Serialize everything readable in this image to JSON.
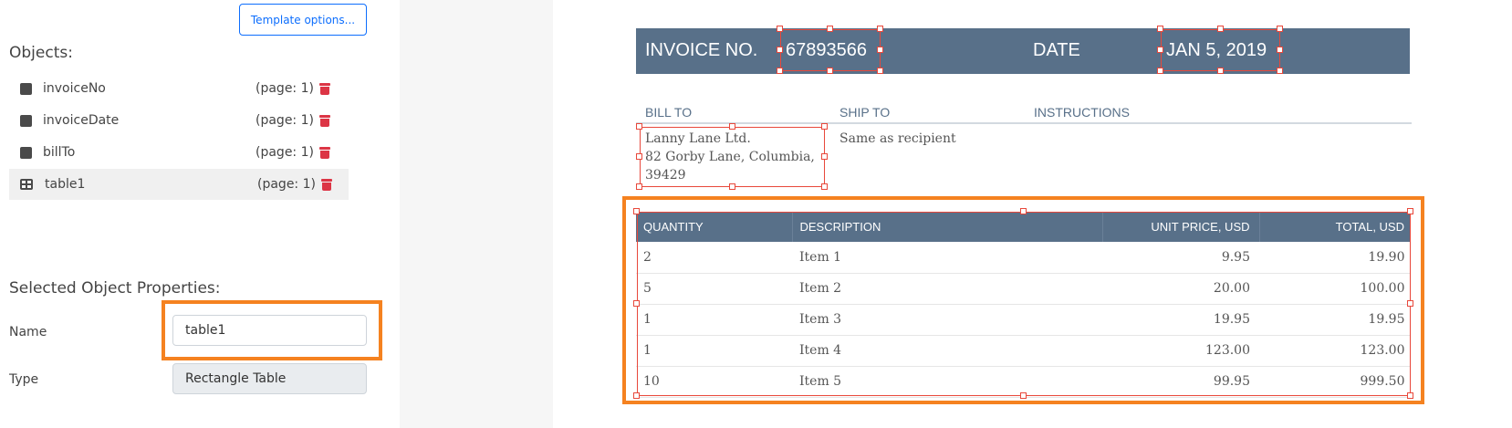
{
  "left_panel": {
    "template_options_label": "Template options...",
    "objects_heading": "Objects:",
    "objects": [
      {
        "name": "invoiceNo",
        "page": "(page: 1)",
        "icon": "square-icon"
      },
      {
        "name": "invoiceDate",
        "page": "(page: 1)",
        "icon": "square-icon"
      },
      {
        "name": "billTo",
        "page": "(page: 1)",
        "icon": "square-icon"
      },
      {
        "name": "table1",
        "page": "(page: 1)",
        "icon": "table-icon",
        "selected": true
      }
    ],
    "properties_heading": "Selected Object Properties:",
    "name_label": "Name",
    "name_value": "table1",
    "type_label": "Type",
    "type_value": "Rectangle Table"
  },
  "document": {
    "invoice_no_label": "INVOICE NO.",
    "invoice_no": "67893566",
    "date_label": "DATE",
    "date": "JAN 5, 2019",
    "bill_to_label": "BILL TO",
    "ship_to_label": "SHIP TO",
    "instructions_label": "INSTRUCTIONS",
    "bill_to_lines": [
      "Lanny Lane Ltd.",
      "82  Gorby Lane, Columbia,",
      "39429"
    ],
    "ship_to": "Same as recipient",
    "table": {
      "headers": [
        "QUANTITY",
        "DESCRIPTION",
        "UNIT PRICE, USD",
        "TOTAL, USD"
      ],
      "rows": [
        [
          "2",
          "Item 1",
          "9.95",
          "19.90"
        ],
        [
          "5",
          "Item 2",
          "20.00",
          "100.00"
        ],
        [
          "1",
          "Item 3",
          "19.95",
          "19.95"
        ],
        [
          "1",
          "Item 4",
          "123.00",
          "123.00"
        ],
        [
          "10",
          "Item 5",
          "99.95",
          "999.50"
        ]
      ]
    }
  },
  "colors": {
    "header_band": "#587089",
    "selection": "#e8483b",
    "highlight": "#f58220",
    "trash": "#dc3545",
    "primary": "#0d6efd"
  }
}
